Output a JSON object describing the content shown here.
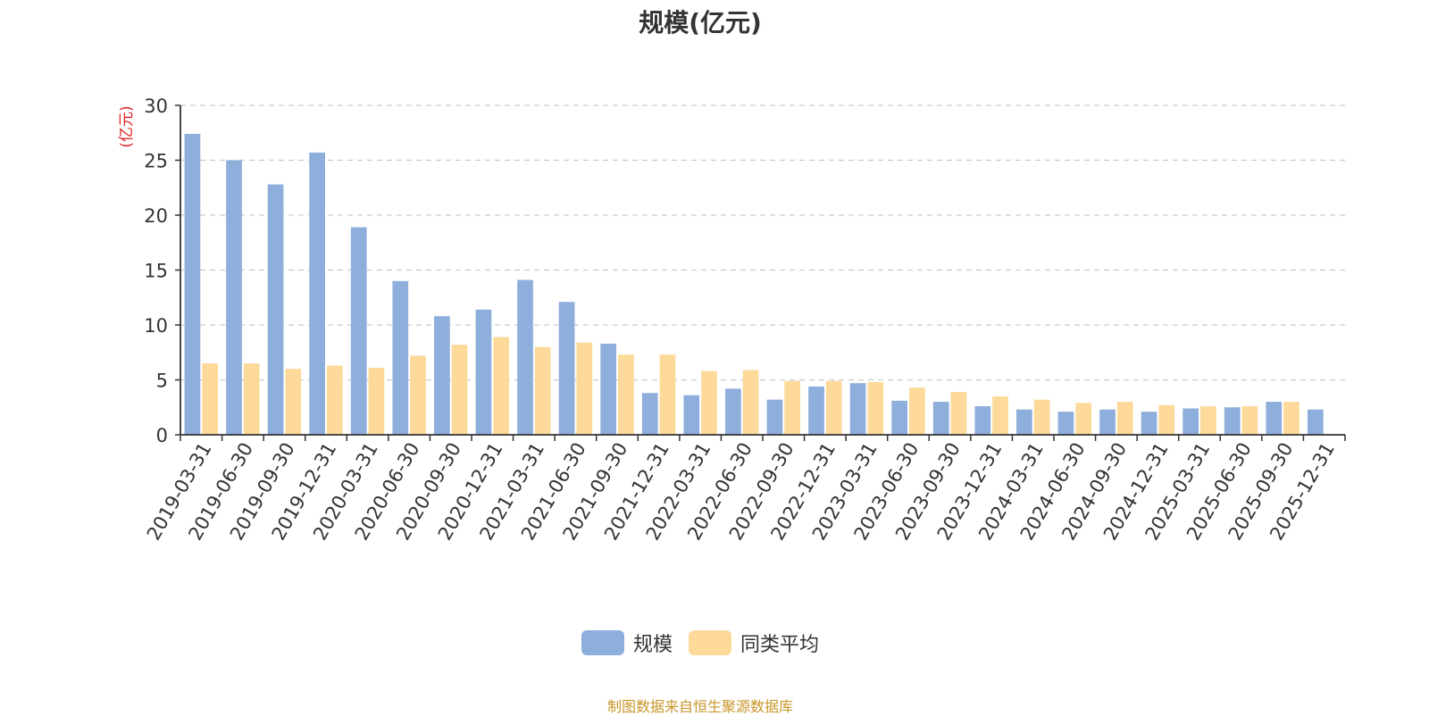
{
  "title": "规模(亿元)",
  "footer": "制图数据来自恒生聚源数据库",
  "colors": {
    "series1": "#8eaedc",
    "series2": "#fdd99a",
    "axis": "#333333",
    "grid": "#cccccc",
    "unit": "#e02020",
    "footer": "#c8962a",
    "title": "#333333"
  },
  "chart_data": {
    "type": "bar",
    "title": "规模(亿元)",
    "ylabel": "(亿元)",
    "xlabel": "",
    "ylim": [
      0,
      30
    ],
    "yticks": [
      0,
      5,
      10,
      15,
      20,
      25,
      30
    ],
    "grid": true,
    "legend_position": "bottom",
    "categories": [
      "2019-03-31",
      "2019-06-30",
      "2019-09-30",
      "2019-12-31",
      "2020-03-31",
      "2020-06-30",
      "2020-09-30",
      "2020-12-31",
      "2021-03-31",
      "2021-06-30",
      "2021-09-30",
      "2021-12-31",
      "2022-03-31",
      "2022-06-30",
      "2022-09-30",
      "2022-12-31",
      "2023-03-31",
      "2023-06-30",
      "2023-09-30",
      "2023-12-31",
      "2024-03-31",
      "2024-06-30",
      "2024-09-30",
      "2024-12-31",
      "2025-03-31",
      "2025-06-30",
      "2025-09-30",
      "2025-12-31"
    ],
    "series": [
      {
        "name": "规模",
        "values": [
          27.4,
          25.0,
          22.8,
          25.7,
          18.9,
          14.0,
          10.8,
          11.4,
          14.1,
          12.1,
          8.3,
          3.8,
          3.6,
          4.2,
          3.2,
          4.4,
          4.7,
          3.1,
          3.0,
          2.6,
          2.3,
          2.1,
          2.3,
          2.1,
          2.4,
          2.5,
          3.0,
          2.3
        ]
      },
      {
        "name": "同类平均",
        "values": [
          6.5,
          6.5,
          6.0,
          6.3,
          6.1,
          7.2,
          8.2,
          8.9,
          8.0,
          8.4,
          7.3,
          7.3,
          5.8,
          5.9,
          4.9,
          4.9,
          4.8,
          4.3,
          3.9,
          3.5,
          3.2,
          2.9,
          3.0,
          2.7,
          2.6,
          2.6,
          3.0,
          null
        ]
      }
    ]
  }
}
